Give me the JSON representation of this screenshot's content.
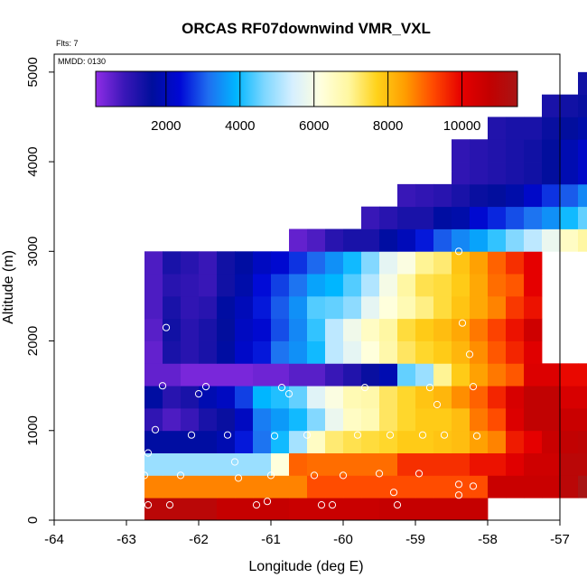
{
  "colors": {
    "scale_stops": [
      "#8f2de6",
      "#3b17b8",
      "#000e9c",
      "#0008d6",
      "#1f6ef0",
      "#00b6ff",
      "#7ed7ff",
      "#d6efff",
      "#ffffde",
      "#fff7a0",
      "#ffd21a",
      "#ff9d00",
      "#ff4a00",
      "#e60000",
      "#c30000",
      "#a81515"
    ],
    "marker": "#ffffff"
  },
  "chart_data": {
    "type": "heatmap",
    "title": "ORCAS RF07downwind VMR_VXL",
    "flights_note": "Flts: 7",
    "date_note": "MMDD: 0130",
    "xlabel": "Longitude (deg E)",
    "ylabel": "Altitude (m)",
    "xlim": [
      -64,
      -57
    ],
    "ylim": [
      0,
      5200
    ],
    "xticks": [
      -64,
      -63,
      -62,
      -61,
      -60,
      -59,
      -58,
      -57
    ],
    "xtick_labels": [
      "-64",
      "-63",
      "-62",
      "-61",
      "-60",
      "-59",
      "-58",
      "-57"
    ],
    "yticks": [
      0,
      1000,
      2000,
      3000,
      4000,
      5000
    ],
    "ytick_labels": [
      "0",
      "1000",
      "2000",
      "3000",
      "4000",
      "5000"
    ],
    "colorbar": {
      "vmin": 100,
      "vmax": 11500,
      "ticks": [
        2000,
        4000,
        6000,
        8000,
        10000
      ],
      "tick_labels": [
        "2000",
        "4000",
        "6000",
        "8000",
        "10000"
      ]
    },
    "grid_cells": {
      "lon_start": -62.75,
      "lon_step": 0.25,
      "alt_start": 0,
      "alt_step": 250,
      "rows": [
        {
          "alt_index": 0,
          "start_col": 0,
          "values": [
            11000,
            11000,
            11000,
            11000,
            10700,
            10700,
            10700,
            10700,
            10600,
            10600,
            10600,
            10600,
            10600,
            10700,
            10700,
            10700,
            10700,
            10700,
            10700
          ]
        },
        {
          "alt_index": 1,
          "start_col": 0,
          "values": [
            8700,
            8700,
            8700,
            8700,
            8700,
            8700,
            8700,
            8700,
            8700,
            9200,
            9200,
            9200,
            9200,
            9200,
            9200,
            9200,
            9200,
            9200,
            9200,
            10600,
            10600,
            10600,
            10600,
            11000,
            11500
          ]
        },
        {
          "alt_index": 2,
          "start_col": 0,
          "values": [
            4900,
            4900,
            4900,
            4900,
            4900,
            4900,
            4900,
            6200,
            9000,
            8900,
            8900,
            8900,
            8900,
            8900,
            9500,
            9500,
            9500,
            9500,
            9800,
            9800,
            10100,
            10500,
            10500,
            11000,
            11000
          ]
        },
        {
          "alt_index": 3,
          "start_col": 0,
          "values": [
            1700,
            1700,
            1700,
            1700,
            1900,
            2500,
            3200,
            4000,
            5000,
            6500,
            7200,
            7400,
            7500,
            7600,
            7800,
            7800,
            7900,
            8000,
            8400,
            8700,
            9700,
            10000,
            10600,
            10800,
            10900
          ]
        },
        {
          "alt_index": 4,
          "start_col": 0,
          "values": [
            1000,
            700,
            900,
            1300,
            1500,
            2100,
            3300,
            3600,
            4000,
            4700,
            5800,
            6500,
            6700,
            7300,
            7600,
            7800,
            7800,
            8000,
            8800,
            9200,
            10200,
            10800,
            10800,
            10600,
            10600
          ]
        },
        {
          "alt_index": 5,
          "start_col": 0,
          "values": [
            1700,
            1100,
            1300,
            1900,
            2100,
            2800,
            3900,
            4100,
            4500,
            5600,
            6100,
            6700,
            6800,
            7300,
            7600,
            7900,
            8100,
            8600,
            9000,
            9600,
            10300,
            10800,
            10800,
            10300,
            10300
          ]
        },
        {
          "alt_index": 6,
          "start_col": 0,
          "values": [
            500,
            500,
            300,
            300,
            300,
            300,
            400,
            400,
            600,
            600,
            900,
            1200,
            1500,
            1900,
            4500,
            4900,
            7000,
            7800,
            8400,
            8800,
            9100,
            10200,
            10200,
            9900,
            9900
          ]
        },
        {
          "alt_index": 7,
          "start_col": 0,
          "values": [
            500,
            1300,
            1100,
            1300,
            1700,
            2200,
            2500,
            3200,
            3500,
            4000,
            5200,
            5700,
            6200,
            6800,
            7300,
            7600,
            7800,
            8100,
            8600,
            9100,
            9600,
            10100
          ]
        },
        {
          "alt_index": 8,
          "start_col": 0,
          "values": [
            600,
            1400,
            1100,
            1300,
            1600,
            2100,
            2300,
            2900,
            3400,
            4200,
            5200,
            5900,
            6500,
            6900,
            7500,
            7800,
            8000,
            8300,
            8800,
            9300,
            9800,
            10500
          ]
        },
        {
          "alt_index": 9,
          "start_col": 0,
          "values": [
            700,
            1300,
            1000,
            1100,
            1700,
            2000,
            2500,
            3000,
            3500,
            4400,
            4500,
            4800,
            5700,
            6200,
            6700,
            7100,
            7500,
            7900,
            8300,
            8700,
            9400,
            9800
          ]
        },
        {
          "alt_index": 10,
          "start_col": 0,
          "values": [
            700,
            1100,
            1000,
            900,
            1400,
            1800,
            2400,
            2800,
            3200,
            3700,
            3900,
            4400,
            5100,
            6000,
            6900,
            7400,
            7500,
            7800,
            8300,
            8900,
            9100,
            10000
          ]
        },
        {
          "alt_index": 11,
          "start_col": 0,
          "values": [
            700,
            1300,
            1100,
            900,
            1400,
            1700,
            2100,
            2300,
            2700,
            3100,
            3500,
            4000,
            4700,
            5700,
            6100,
            7000,
            7200,
            7900,
            8400,
            9000,
            9500,
            10000
          ]
        },
        {
          "alt_index": 12,
          "start_col": 8,
          "values": [
            500,
            700,
            1100,
            1300,
            1300,
            1700,
            2000,
            2500,
            3000,
            3400,
            3700,
            4200,
            4700,
            5200,
            5800,
            6500,
            6900,
            7500
          ]
        },
        {
          "alt_index": 13,
          "start_col": 12,
          "values": [
            900,
            1100,
            1300,
            1300,
            1700,
            1800,
            2300,
            2600,
            2900,
            3200,
            3500,
            4000,
            4500,
            5300
          ]
        },
        {
          "alt_index": 14,
          "start_col": 14,
          "values": [
            900,
            1000,
            1100,
            1300,
            1500,
            1600,
            1800,
            2200,
            2700,
            3000,
            3400,
            4000
          ]
        },
        {
          "alt_index": 15,
          "start_col": 17,
          "values": [
            1000,
            1100,
            1200,
            1300,
            1400,
            1600,
            1900,
            2200,
            2600
          ]
        },
        {
          "alt_index": 16,
          "start_col": 17,
          "values": [
            1000,
            1100,
            1200,
            1300,
            1400,
            1600,
            1900,
            2200,
            2400
          ]
        },
        {
          "alt_index": 17,
          "start_col": 19,
          "values": [
            1200,
            1300,
            1300,
            1500,
            1600,
            1800,
            2100
          ]
        },
        {
          "alt_index": 18,
          "start_col": 22,
          "values": [
            1300,
            1400,
            1500,
            1700
          ]
        },
        {
          "alt_index": 19,
          "start_col": 24,
          "values": [
            1400,
            1600
          ]
        },
        {
          "alt_index": 20,
          "start_col": 26,
          "values": [
            1500
          ]
        }
      ]
    },
    "points": [
      [
        -62.7,
        170
      ],
      [
        -62.4,
        170
      ],
      [
        -62.25,
        500
      ],
      [
        -62.1,
        950
      ],
      [
        -62.0,
        1410
      ],
      [
        -61.9,
        1490
      ],
      [
        -61.6,
        950
      ],
      [
        -61.5,
        650
      ],
      [
        -61.45,
        470
      ],
      [
        -61.2,
        170
      ],
      [
        -61.05,
        210
      ],
      [
        -61.0,
        500
      ],
      [
        -60.95,
        940
      ],
      [
        -60.85,
        1480
      ],
      [
        -60.75,
        1410
      ],
      [
        -60.5,
        950
      ],
      [
        -60.4,
        500
      ],
      [
        -60.3,
        170
      ],
      [
        -60.15,
        170
      ],
      [
        -60.0,
        500
      ],
      [
        -59.8,
        950
      ],
      [
        -59.7,
        1480
      ],
      [
        -59.5,
        520
      ],
      [
        -59.35,
        950
      ],
      [
        -59.3,
        310
      ],
      [
        -59.25,
        170
      ],
      [
        -58.95,
        520
      ],
      [
        -58.9,
        950
      ],
      [
        -58.8,
        1480
      ],
      [
        -58.7,
        1290
      ],
      [
        -58.6,
        950
      ],
      [
        -58.55,
        3890
      ],
      [
        -58.4,
        3000
      ],
      [
        -58.4,
        400
      ],
      [
        -58.4,
        280
      ],
      [
        -58.35,
        2200
      ],
      [
        -58.25,
        1850
      ],
      [
        -58.2,
        1490
      ],
      [
        -58.2,
        380
      ],
      [
        -58.15,
        940
      ],
      [
        -62.75,
        500
      ],
      [
        -62.7,
        750
      ],
      [
        -62.6,
        1010
      ],
      [
        -62.5,
        1500
      ],
      [
        -62.45,
        2150
      ]
    ]
  }
}
